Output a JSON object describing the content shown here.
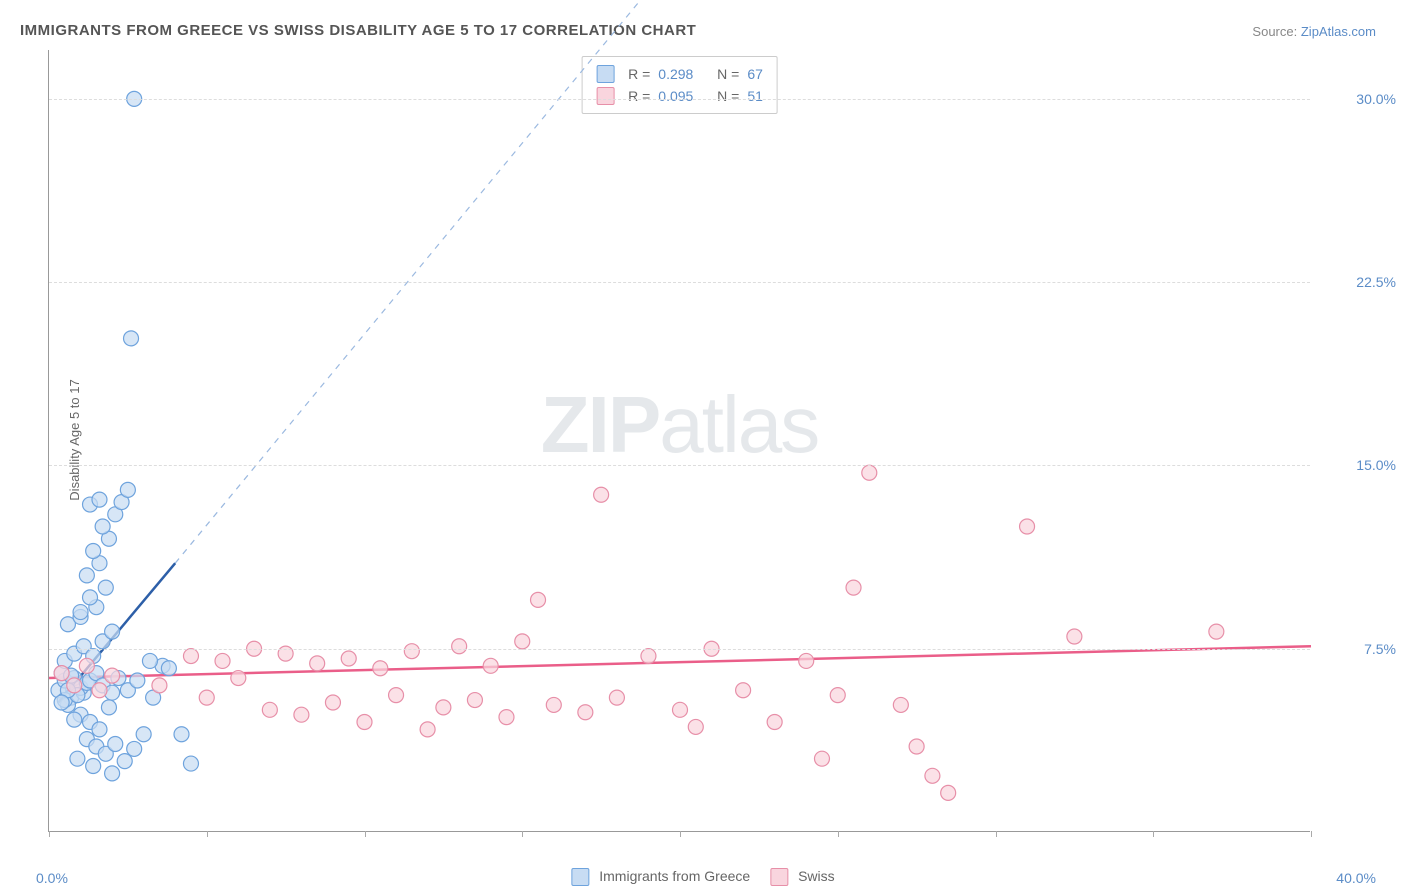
{
  "title": "IMMIGRANTS FROM GREECE VS SWISS DISABILITY AGE 5 TO 17 CORRELATION CHART",
  "source_label": "Source:",
  "source_link": "ZipAtlas.com",
  "y_axis_label": "Disability Age 5 to 17",
  "x_origin": "0.0%",
  "x_max": "40.0%",
  "watermark_bold": "ZIP",
  "watermark_light": "atlas",
  "chart": {
    "type": "scatter",
    "xlim": [
      0,
      40
    ],
    "ylim": [
      0,
      32
    ],
    "y_ticks": [
      7.5,
      15.0,
      22.5,
      30.0
    ],
    "y_tick_labels": [
      "7.5%",
      "15.0%",
      "22.5%",
      "30.0%"
    ],
    "x_ticks": [
      0,
      5,
      10,
      15,
      20,
      25,
      30,
      35,
      40
    ],
    "background_color": "#ffffff",
    "grid_color": "#dddddd",
    "marker_radius": 7.5,
    "marker_stroke_width": 1.2,
    "series": [
      {
        "name": "Immigrants from Greece",
        "fill": "#c7dcf3",
        "stroke": "#6ea3dd",
        "line_color": "#2d5fa8",
        "line_dash_color": "#9bb9e0",
        "r_label": "R =",
        "r_value": "0.298",
        "n_label": "N =",
        "n_value": "67",
        "trend": {
          "x1": 0.3,
          "y1": 5.3,
          "x2": 4.0,
          "y2": 11.0,
          "dash_x2": 20.0,
          "dash_y2": 36.0
        },
        "points": [
          [
            0.3,
            5.8
          ],
          [
            0.5,
            6.2
          ],
          [
            0.7,
            5.5
          ],
          [
            0.9,
            6.0
          ],
          [
            1.1,
            5.7
          ],
          [
            0.4,
            6.5
          ],
          [
            0.6,
            5.2
          ],
          [
            0.8,
            6.3
          ],
          [
            1.0,
            5.9
          ],
          [
            1.2,
            6.1
          ],
          [
            0.5,
            5.4
          ],
          [
            0.7,
            6.4
          ],
          [
            0.9,
            5.6
          ],
          [
            1.3,
            6.2
          ],
          [
            0.6,
            5.8
          ],
          [
            1.5,
            6.5
          ],
          [
            0.4,
            5.3
          ],
          [
            1.7,
            6.0
          ],
          [
            2.0,
            5.7
          ],
          [
            2.2,
            6.3
          ],
          [
            1.0,
            4.8
          ],
          [
            1.3,
            4.5
          ],
          [
            1.6,
            4.2
          ],
          [
            0.8,
            4.6
          ],
          [
            1.9,
            5.1
          ],
          [
            2.5,
            5.8
          ],
          [
            2.8,
            6.2
          ],
          [
            1.2,
            3.8
          ],
          [
            1.5,
            3.5
          ],
          [
            1.8,
            3.2
          ],
          [
            2.1,
            3.6
          ],
          [
            0.9,
            3.0
          ],
          [
            1.4,
            2.7
          ],
          [
            2.0,
            2.4
          ],
          [
            2.4,
            2.9
          ],
          [
            2.7,
            3.4
          ],
          [
            3.0,
            4.0
          ],
          [
            3.3,
            5.5
          ],
          [
            3.6,
            6.8
          ],
          [
            0.5,
            7.0
          ],
          [
            0.8,
            7.3
          ],
          [
            1.1,
            7.6
          ],
          [
            1.4,
            7.2
          ],
          [
            1.7,
            7.8
          ],
          [
            2.0,
            8.2
          ],
          [
            0.6,
            8.5
          ],
          [
            1.0,
            8.8
          ],
          [
            1.5,
            9.2
          ],
          [
            1.3,
            9.6
          ],
          [
            1.8,
            10.0
          ],
          [
            1.2,
            10.5
          ],
          [
            1.6,
            11.0
          ],
          [
            1.4,
            11.5
          ],
          [
            1.9,
            12.0
          ],
          [
            1.7,
            12.5
          ],
          [
            2.1,
            13.0
          ],
          [
            2.3,
            13.5
          ],
          [
            2.5,
            14.0
          ],
          [
            1.0,
            9.0
          ],
          [
            1.3,
            13.4
          ],
          [
            1.6,
            13.6
          ],
          [
            2.7,
            30.0
          ],
          [
            2.6,
            20.2
          ],
          [
            3.2,
            7.0
          ],
          [
            3.8,
            6.7
          ],
          [
            4.2,
            4.0
          ],
          [
            4.5,
            2.8
          ]
        ]
      },
      {
        "name": "Swiss",
        "fill": "#f9d5de",
        "stroke": "#e78fa8",
        "line_color": "#ea5e89",
        "r_label": "R =",
        "r_value": "0.095",
        "n_label": "N =",
        "n_value": "51",
        "trend": {
          "x1": 0.0,
          "y1": 6.3,
          "x2": 40.0,
          "y2": 7.6
        },
        "points": [
          [
            0.4,
            6.5
          ],
          [
            0.8,
            6.0
          ],
          [
            1.2,
            6.8
          ],
          [
            1.6,
            5.8
          ],
          [
            2.0,
            6.4
          ],
          [
            3.5,
            6.0
          ],
          [
            4.5,
            7.2
          ],
          [
            5.0,
            5.5
          ],
          [
            5.5,
            7.0
          ],
          [
            6.0,
            6.3
          ],
          [
            6.5,
            7.5
          ],
          [
            7.0,
            5.0
          ],
          [
            7.5,
            7.3
          ],
          [
            8.0,
            4.8
          ],
          [
            8.5,
            6.9
          ],
          [
            9.0,
            5.3
          ],
          [
            9.5,
            7.1
          ],
          [
            10.0,
            4.5
          ],
          [
            10.5,
            6.7
          ],
          [
            11.0,
            5.6
          ],
          [
            11.5,
            7.4
          ],
          [
            12.0,
            4.2
          ],
          [
            12.5,
            5.1
          ],
          [
            13.0,
            7.6
          ],
          [
            13.5,
            5.4
          ],
          [
            14.0,
            6.8
          ],
          [
            14.5,
            4.7
          ],
          [
            15.0,
            7.8
          ],
          [
            16.0,
            5.2
          ],
          [
            17.0,
            4.9
          ],
          [
            17.5,
            13.8
          ],
          [
            18.0,
            5.5
          ],
          [
            19.0,
            7.2
          ],
          [
            20.0,
            5.0
          ],
          [
            20.5,
            4.3
          ],
          [
            21.0,
            7.5
          ],
          [
            22.0,
            5.8
          ],
          [
            23.0,
            4.5
          ],
          [
            24.0,
            7.0
          ],
          [
            24.5,
            3.0
          ],
          [
            25.0,
            5.6
          ],
          [
            25.5,
            10.0
          ],
          [
            26.0,
            14.7
          ],
          [
            27.0,
            5.2
          ],
          [
            27.5,
            3.5
          ],
          [
            28.0,
            2.3
          ],
          [
            28.5,
            1.6
          ],
          [
            31.0,
            12.5
          ],
          [
            32.5,
            8.0
          ],
          [
            37.0,
            8.2
          ],
          [
            15.5,
            9.5
          ]
        ]
      }
    ]
  },
  "bottom_legend": {
    "series1_label": "Immigrants from Greece",
    "series2_label": "Swiss"
  }
}
